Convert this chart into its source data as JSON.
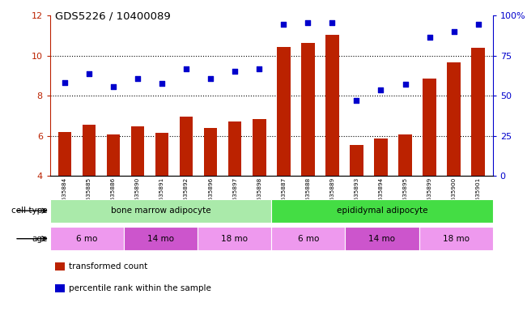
{
  "title": "GDS5226 / 10400089",
  "samples": [
    "GSM635884",
    "GSM635885",
    "GSM635886",
    "GSM635890",
    "GSM635891",
    "GSM635892",
    "GSM635896",
    "GSM635897",
    "GSM635898",
    "GSM635887",
    "GSM635888",
    "GSM635889",
    "GSM635893",
    "GSM635894",
    "GSM635895",
    "GSM635899",
    "GSM635900",
    "GSM635901"
  ],
  "bar_values": [
    6.2,
    6.55,
    6.05,
    6.45,
    6.15,
    6.95,
    6.4,
    6.7,
    6.85,
    10.45,
    10.65,
    11.05,
    5.55,
    5.85,
    6.05,
    8.85,
    9.65,
    10.4
  ],
  "scatter_values": [
    8.65,
    9.1,
    8.45,
    8.85,
    8.6,
    9.35,
    8.85,
    9.2,
    9.35,
    11.55,
    11.65,
    11.65,
    7.75,
    8.3,
    8.55,
    10.9,
    11.2,
    11.55
  ],
  "ylim_left": [
    4,
    12
  ],
  "ylim_right": [
    0,
    100
  ],
  "yticks_left": [
    4,
    6,
    8,
    10,
    12
  ],
  "yticks_right": [
    0,
    25,
    50,
    75,
    100
  ],
  "ytick_labels_right": [
    "0",
    "25",
    "50",
    "75",
    "100%"
  ],
  "bar_color": "#bb2200",
  "scatter_color": "#0000cc",
  "cell_type_groups": [
    {
      "label": "bone marrow adipocyte",
      "start": 0,
      "end": 9,
      "color": "#aaeaaa"
    },
    {
      "label": "epididymal adipocyte",
      "start": 9,
      "end": 18,
      "color": "#44dd44"
    }
  ],
  "age_groups": [
    {
      "label": "6 mo",
      "start": 0,
      "end": 3,
      "color": "#ee99ee"
    },
    {
      "label": "14 mo",
      "start": 3,
      "end": 6,
      "color": "#cc55cc"
    },
    {
      "label": "18 mo",
      "start": 6,
      "end": 9,
      "color": "#ee99ee"
    },
    {
      "label": "6 mo",
      "start": 9,
      "end": 12,
      "color": "#ee99ee"
    },
    {
      "label": "14 mo",
      "start": 12,
      "end": 15,
      "color": "#cc55cc"
    },
    {
      "label": "18 mo",
      "start": 15,
      "end": 18,
      "color": "#ee99ee"
    }
  ],
  "label_cell_type": "cell type",
  "label_age": "age",
  "legend_bar": "transformed count",
  "legend_scatter": "percentile rank within the sample",
  "bar_width": 0.55,
  "background_color": "#ffffff"
}
